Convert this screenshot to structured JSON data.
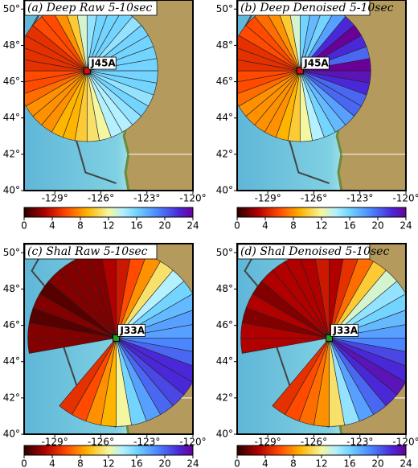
{
  "panels": [
    {
      "title": "(a) Deep Raw 5-10sec",
      "station": "J45A",
      "station_lon": -126.9,
      "station_lat": 46.6,
      "lonlim": [
        -131,
        -120
      ],
      "latlim": [
        40,
        50.5
      ],
      "lonticks": [
        {
          "value": -129,
          "label": "-129°"
        },
        {
          "value": -126,
          "label": "-126°"
        },
        {
          "value": -123,
          "label": "-123°"
        },
        {
          "value": -120,
          "label": "-120°"
        }
      ],
      "latticks": [
        {
          "value": 40,
          "label": "40°"
        },
        {
          "value": 42,
          "label": "42°"
        },
        {
          "value": 44,
          "label": "44°"
        },
        {
          "value": 46,
          "label": "46°"
        },
        {
          "value": 48,
          "label": "48°"
        },
        {
          "value": 50,
          "label": "50°"
        }
      ],
      "wedges": [
        15,
        16,
        16,
        16,
        15,
        16,
        16,
        16,
        16,
        16,
        16,
        15,
        16,
        15,
        14,
        14,
        12,
        11,
        10,
        9,
        9,
        8,
        8,
        8,
        7,
        6,
        6,
        5,
        5,
        5,
        5,
        6,
        6,
        8,
        10,
        13
      ]
    },
    {
      "title": "(b) Deep Denoised 5-10sec",
      "station": "J45A",
      "station_lon": -126.9,
      "station_lat": 46.6,
      "lonlim": [
        -131,
        -120
      ],
      "latlim": [
        40,
        50.5
      ],
      "lonticks": [
        {
          "value": -129,
          "label": "-129°"
        },
        {
          "value": -126,
          "label": "-126°"
        },
        {
          "value": -123,
          "label": "-123°"
        },
        {
          "value": -120,
          "label": "-120°"
        }
      ],
      "latticks": [
        {
          "value": 40,
          "label": "40°"
        },
        {
          "value": 42,
          "label": "42°"
        },
        {
          "value": 44,
          "label": "44°"
        },
        {
          "value": 46,
          "label": "46°"
        },
        {
          "value": 48,
          "label": "48°"
        },
        {
          "value": 50,
          "label": "50°"
        }
      ],
      "wedges": [
        16,
        17,
        16,
        18,
        22,
        24,
        22,
        20,
        24,
        23,
        22,
        20,
        20,
        18,
        17,
        16,
        14,
        12,
        10,
        9,
        8,
        8,
        8,
        8,
        7,
        6,
        6,
        5,
        5,
        5,
        6,
        6,
        7,
        8,
        10,
        13
      ]
    },
    {
      "title": "(c) Shal Raw 5-10sec",
      "station": "J33A",
      "station_lon": -125.0,
      "station_lat": 45.3,
      "lonlim": [
        -131,
        -120
      ],
      "latlim": [
        40,
        50.5
      ],
      "lonticks": [
        {
          "value": -129,
          "label": "-129°"
        },
        {
          "value": -126,
          "label": "-126°"
        },
        {
          "value": -123,
          "label": "-123°"
        },
        {
          "value": -120,
          "label": "-120°"
        }
      ],
      "latticks": [
        {
          "value": 40,
          "label": "40°"
        },
        {
          "value": 42,
          "label": "42°"
        },
        {
          "value": 44,
          "label": "44°"
        },
        {
          "value": 46,
          "label": "46°"
        },
        {
          "value": 48,
          "label": "48°"
        },
        {
          "value": 50,
          "label": "50°"
        }
      ],
      "wedges": [
        4,
        6,
        8,
        11,
        14,
        16,
        17,
        18,
        18,
        19,
        20,
        22,
        22,
        21,
        20,
        18,
        16,
        12,
        9,
        8,
        6,
        5,
        null,
        null,
        null,
        null,
        2,
        2,
        1,
        2,
        1,
        2,
        2,
        2,
        2,
        3
      ]
    },
    {
      "title": "(d) Shal Denoised 5-10sec",
      "station": "J33A",
      "station_lon": -125.0,
      "station_lat": 45.3,
      "lonlim": [
        -131,
        -120
      ],
      "latlim": [
        40,
        50.5
      ],
      "lonticks": [
        {
          "value": -129,
          "label": "-129°"
        },
        {
          "value": -126,
          "label": "-126°"
        },
        {
          "value": -123,
          "label": "-123°"
        },
        {
          "value": -120,
          "label": "-120°"
        }
      ],
      "latticks": [
        {
          "value": 40,
          "label": "40°"
        },
        {
          "value": 42,
          "label": "42°"
        },
        {
          "value": 44,
          "label": "44°"
        },
        {
          "value": 46,
          "label": "46°"
        },
        {
          "value": 48,
          "label": "48°"
        },
        {
          "value": 50,
          "label": "50°"
        }
      ],
      "wedges": [
        3,
        5,
        7,
        10,
        13,
        15,
        16,
        17,
        18,
        19,
        21,
        22,
        23,
        22,
        20,
        18,
        15,
        11,
        8,
        7,
        6,
        5,
        null,
        null,
        null,
        null,
        3,
        3,
        2,
        3,
        2,
        3,
        3,
        3,
        3,
        4
      ]
    }
  ],
  "colorbar": {
    "lim": [
      0,
      24
    ],
    "ticks": [
      0,
      4,
      8,
      12,
      16,
      20,
      24
    ],
    "stops": [
      {
        "value": 0,
        "color": "#2a0000"
      },
      {
        "value": 3,
        "color": "#b00000"
      },
      {
        "value": 6,
        "color": "#ff4a00"
      },
      {
        "value": 9,
        "color": "#ffb400"
      },
      {
        "value": 12,
        "color": "#f4f7a0"
      },
      {
        "value": 14,
        "color": "#b4f0ff"
      },
      {
        "value": 16,
        "color": "#72d4ff"
      },
      {
        "value": 19,
        "color": "#4a86ff"
      },
      {
        "value": 22,
        "color": "#4a28d8"
      },
      {
        "value": 24,
        "color": "#6a0098"
      }
    ]
  }
}
